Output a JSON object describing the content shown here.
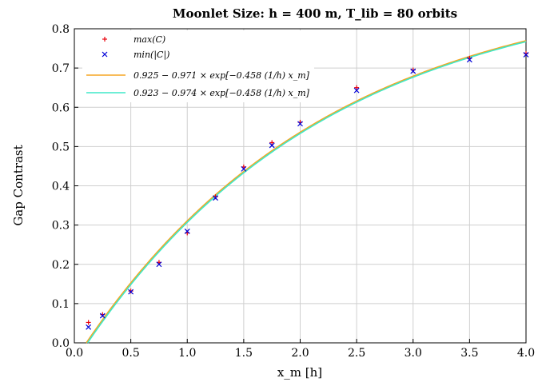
{
  "chart_data": {
    "type": "scatter",
    "title": "Moonlet Size: h = 400 m, T_lib = 80 orbits",
    "xlabel": "x_m [h]",
    "ylabel": "Gap Contrast",
    "xlim": [
      0.0,
      4.0
    ],
    "ylim": [
      0.0,
      0.8
    ],
    "x_ticks": [
      "0.0",
      "0.5",
      "1.0",
      "1.5",
      "2.0",
      "2.5",
      "3.0",
      "3.5",
      "4.0"
    ],
    "y_ticks": [
      "0.0",
      "0.1",
      "0.2",
      "0.3",
      "0.4",
      "0.5",
      "0.6",
      "0.7",
      "0.8"
    ],
    "grid": true,
    "legend_position": "top-left",
    "series": [
      {
        "name": "max(C)",
        "kind": "scatter",
        "marker": "plus",
        "color": "#e8000b",
        "x": [
          0.125,
          0.25,
          0.5,
          0.75,
          1.0,
          1.25,
          1.5,
          1.75,
          2.0,
          2.5,
          3.0,
          3.5,
          4.0
        ],
        "y": [
          0.052,
          0.072,
          0.132,
          0.205,
          0.28,
          0.372,
          0.448,
          0.51,
          0.562,
          0.65,
          0.695,
          0.725,
          0.737
        ]
      },
      {
        "name": "min(|C|)",
        "kind": "scatter",
        "marker": "x",
        "color": "#0000d8",
        "x": [
          0.125,
          0.25,
          0.5,
          0.75,
          1.0,
          1.25,
          1.5,
          1.75,
          2.0,
          2.5,
          3.0,
          3.5,
          4.0
        ],
        "y": [
          0.04,
          0.069,
          0.13,
          0.2,
          0.284,
          0.369,
          0.443,
          0.503,
          0.558,
          0.643,
          0.692,
          0.721,
          0.734
        ]
      },
      {
        "name": "0.925 − 0.971 × exp[−0.458 (1/h) x_m]",
        "kind": "line",
        "color": "#f5a623",
        "a": 0.925,
        "b": 0.971,
        "k": 0.458
      },
      {
        "name": "0.923 − 0.974 × exp[−0.458 (1/h) x_m]",
        "kind": "line",
        "color": "#3ee8c8",
        "a": 0.923,
        "b": 0.974,
        "k": 0.458
      }
    ]
  }
}
